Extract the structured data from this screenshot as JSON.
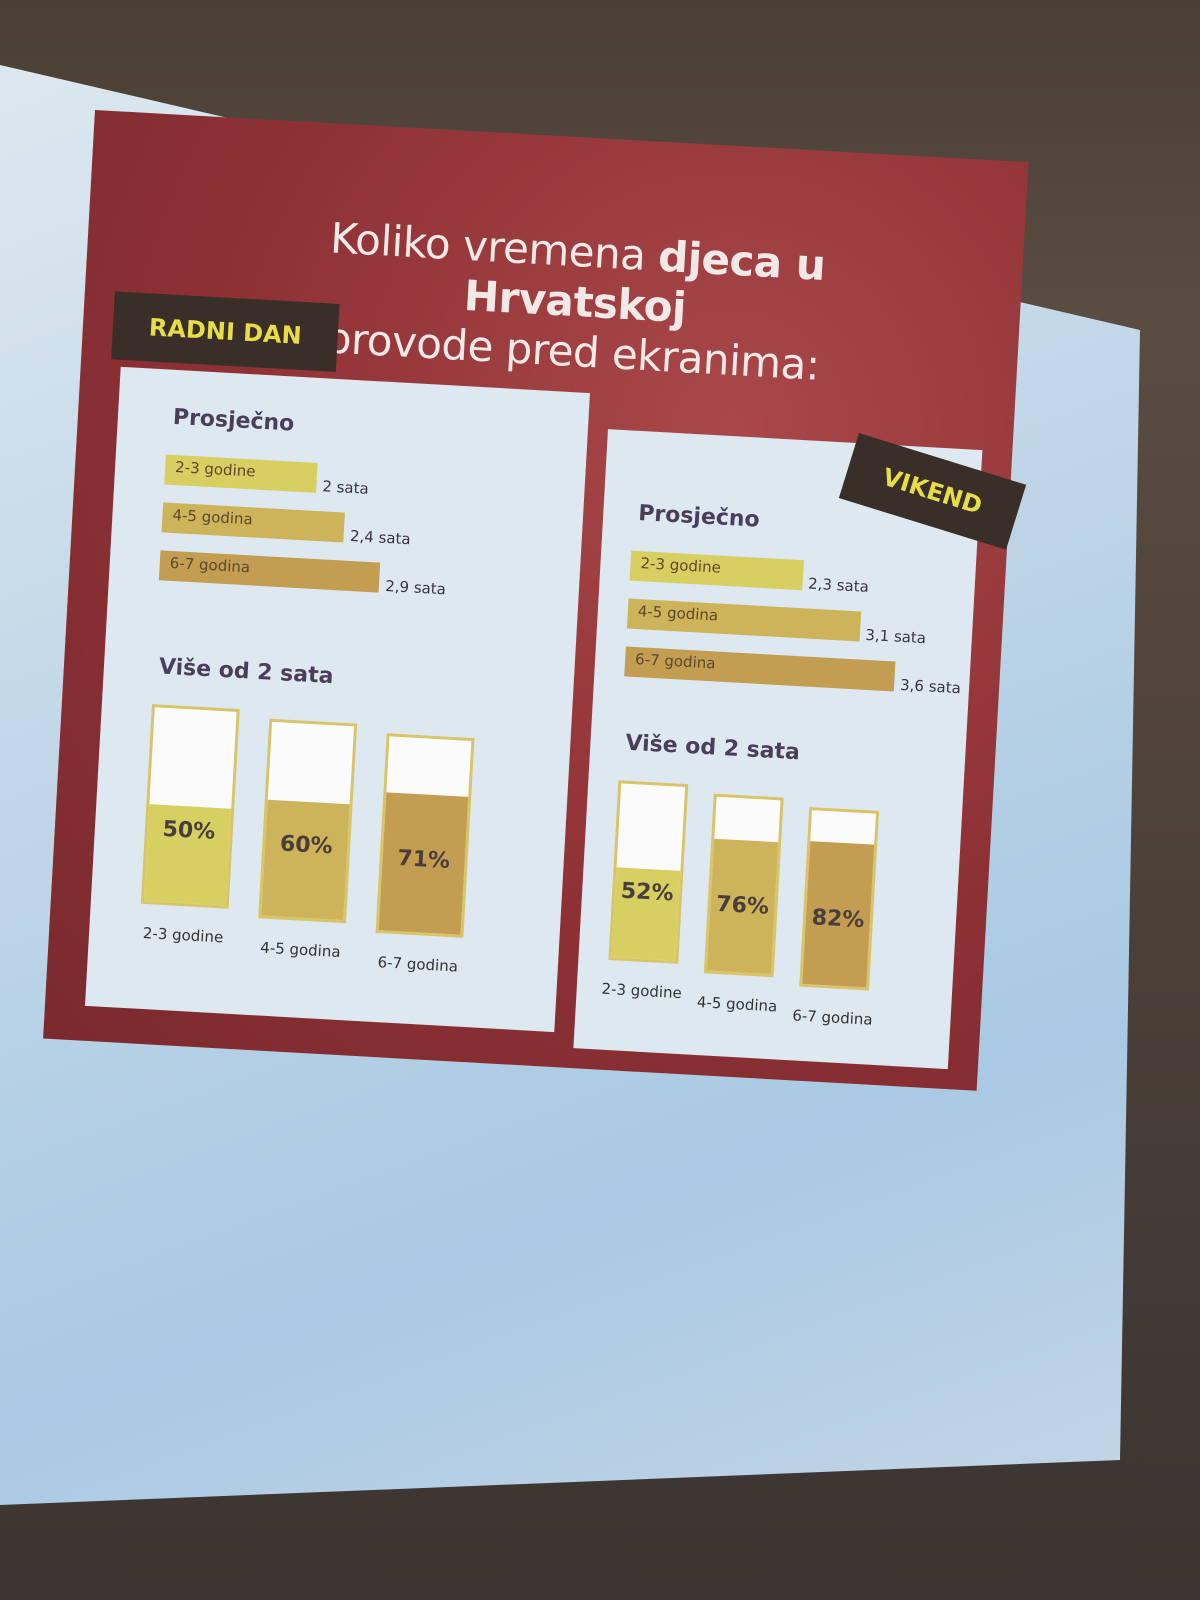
{
  "slide": {
    "title_part1": "Koliko vremena ",
    "title_bold": "djeca u Hrvatskoj",
    "title_part2": "provode pred ekranima:"
  },
  "colors": {
    "slide_bg": "#8e3135",
    "panel_bg": "#dde8f1",
    "tag_bg": "#3a2e28",
    "tag_text": "#e7dd4a",
    "bar_2_3": "#d8cf62",
    "bar_4_5": "#cdb35a",
    "bar_6_7": "#c39d52"
  },
  "chart_data": [
    {
      "type": "bar",
      "orientation": "horizontal",
      "panel": "RADNI DAN",
      "title": "Prosječno",
      "categories": [
        "2-3 godine",
        "4-5 godina",
        "6-7 godina"
      ],
      "values": [
        2,
        2.4,
        2.9
      ],
      "value_labels": [
        "2 sata",
        "2,4 sata",
        "2,9 sata"
      ],
      "unit": "sata"
    },
    {
      "type": "bar",
      "orientation": "vertical-fill",
      "panel": "RADNI DAN",
      "title": "Više od 2 sata",
      "categories": [
        "2-3 godine",
        "4-5 godina",
        "6-7 godina"
      ],
      "values": [
        50,
        60,
        71
      ],
      "value_labels": [
        "50%",
        "60%",
        "71%"
      ],
      "ylim": [
        0,
        100
      ]
    },
    {
      "type": "bar",
      "orientation": "horizontal",
      "panel": "VIKEND",
      "title": "Prosječno",
      "categories": [
        "2-3 godine",
        "4-5 godina",
        "6-7 godina"
      ],
      "values": [
        2.3,
        3.1,
        3.6
      ],
      "value_labels": [
        "2,3 sata",
        "3,1 sata",
        "3,6 sata"
      ],
      "unit": "sata"
    },
    {
      "type": "bar",
      "orientation": "vertical-fill",
      "panel": "VIKEND",
      "title": "Više od 2 sata",
      "categories": [
        "2-3 godine",
        "4-5 godina",
        "6-7 godina"
      ],
      "values": [
        52,
        76,
        82
      ],
      "value_labels": [
        "52%",
        "76%",
        "82%"
      ],
      "ylim": [
        0,
        100
      ]
    }
  ]
}
